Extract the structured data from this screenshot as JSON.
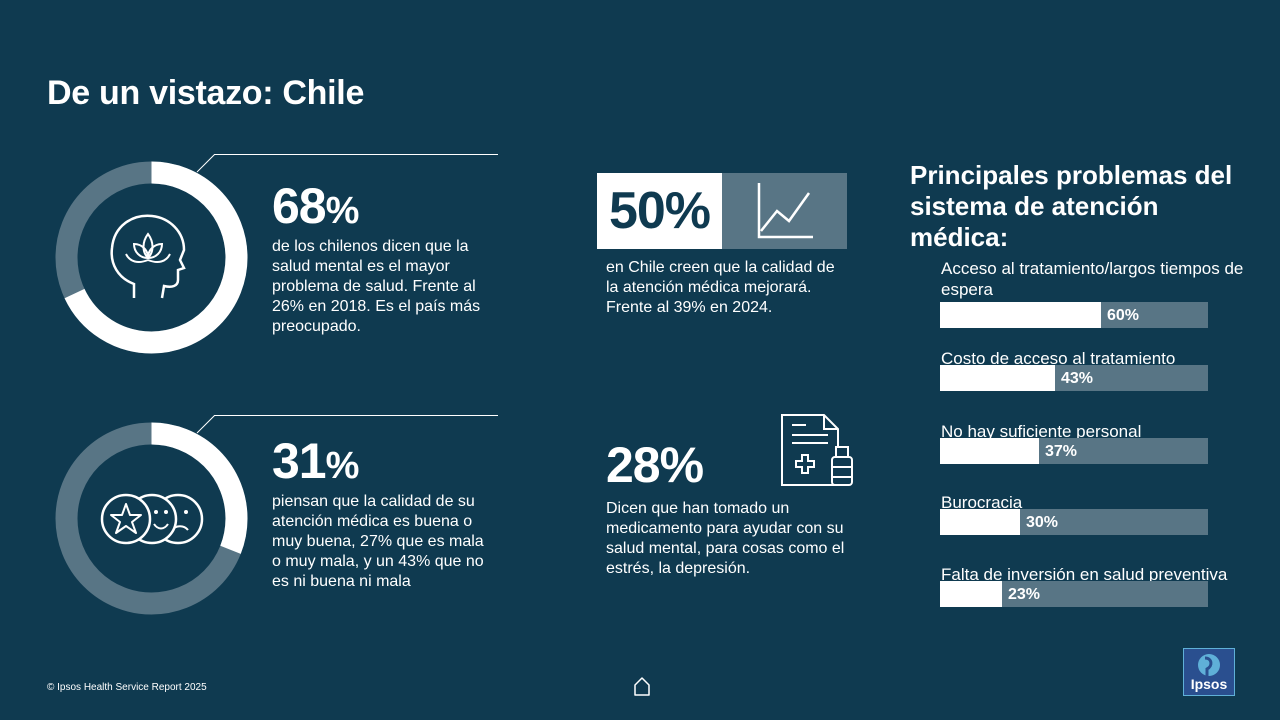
{
  "title": "De un vistazo: Chile",
  "stat1": {
    "value": "68",
    "symbol": "%",
    "fraction": 0.68,
    "text": "de los chilenos dicen que la salud mental es el mayor problema de salud. Frente al 26% en 2018. Es el país más preocupado."
  },
  "stat2": {
    "value": "31",
    "symbol": "%",
    "fraction": 0.31,
    "text": "piensan que la calidad de su atención médica es buena o muy buena,  27% que es mala o muy mala, y un 43% que no es ni buena ni mala"
  },
  "stat3": {
    "value": "50%",
    "text": "en Chile creen que la calidad de la atención médica mejorará. Frente al 39% en 2024."
  },
  "stat4": {
    "value": "28%",
    "text": "Dicen que han tomado un medicamento para ayudar con su salud mental, para cosas como el estrés, la depresión."
  },
  "problems": {
    "heading": "Principales problemas del sistema de atención médica:",
    "items": [
      {
        "label": "Acceso al tratamiento/largos tiempos de espera",
        "value": 60,
        "pct": "60%"
      },
      {
        "label": "Costo de acceso al tratamiento",
        "value": 43,
        "pct": "43%"
      },
      {
        "label": "No hay suficiente personal",
        "value": 37,
        "pct": "37%"
      },
      {
        "label": "Burocracia",
        "value": 30,
        "pct": "30%"
      },
      {
        "label": "Falta de inversión en salud preventiva",
        "value": 23,
        "pct": "23%"
      }
    ]
  },
  "footer": "© Ipsos Health Service Report 2025",
  "logo_text": "Ipsos",
  "colors": {
    "background": "#0f3a50",
    "muted": "#587585",
    "accent": "#ffffff"
  },
  "icons": [
    "lotus-head-icon",
    "rating-faces-icon",
    "trend-line-icon",
    "prescription-icon",
    "home-icon",
    "ipsos-logo"
  ]
}
